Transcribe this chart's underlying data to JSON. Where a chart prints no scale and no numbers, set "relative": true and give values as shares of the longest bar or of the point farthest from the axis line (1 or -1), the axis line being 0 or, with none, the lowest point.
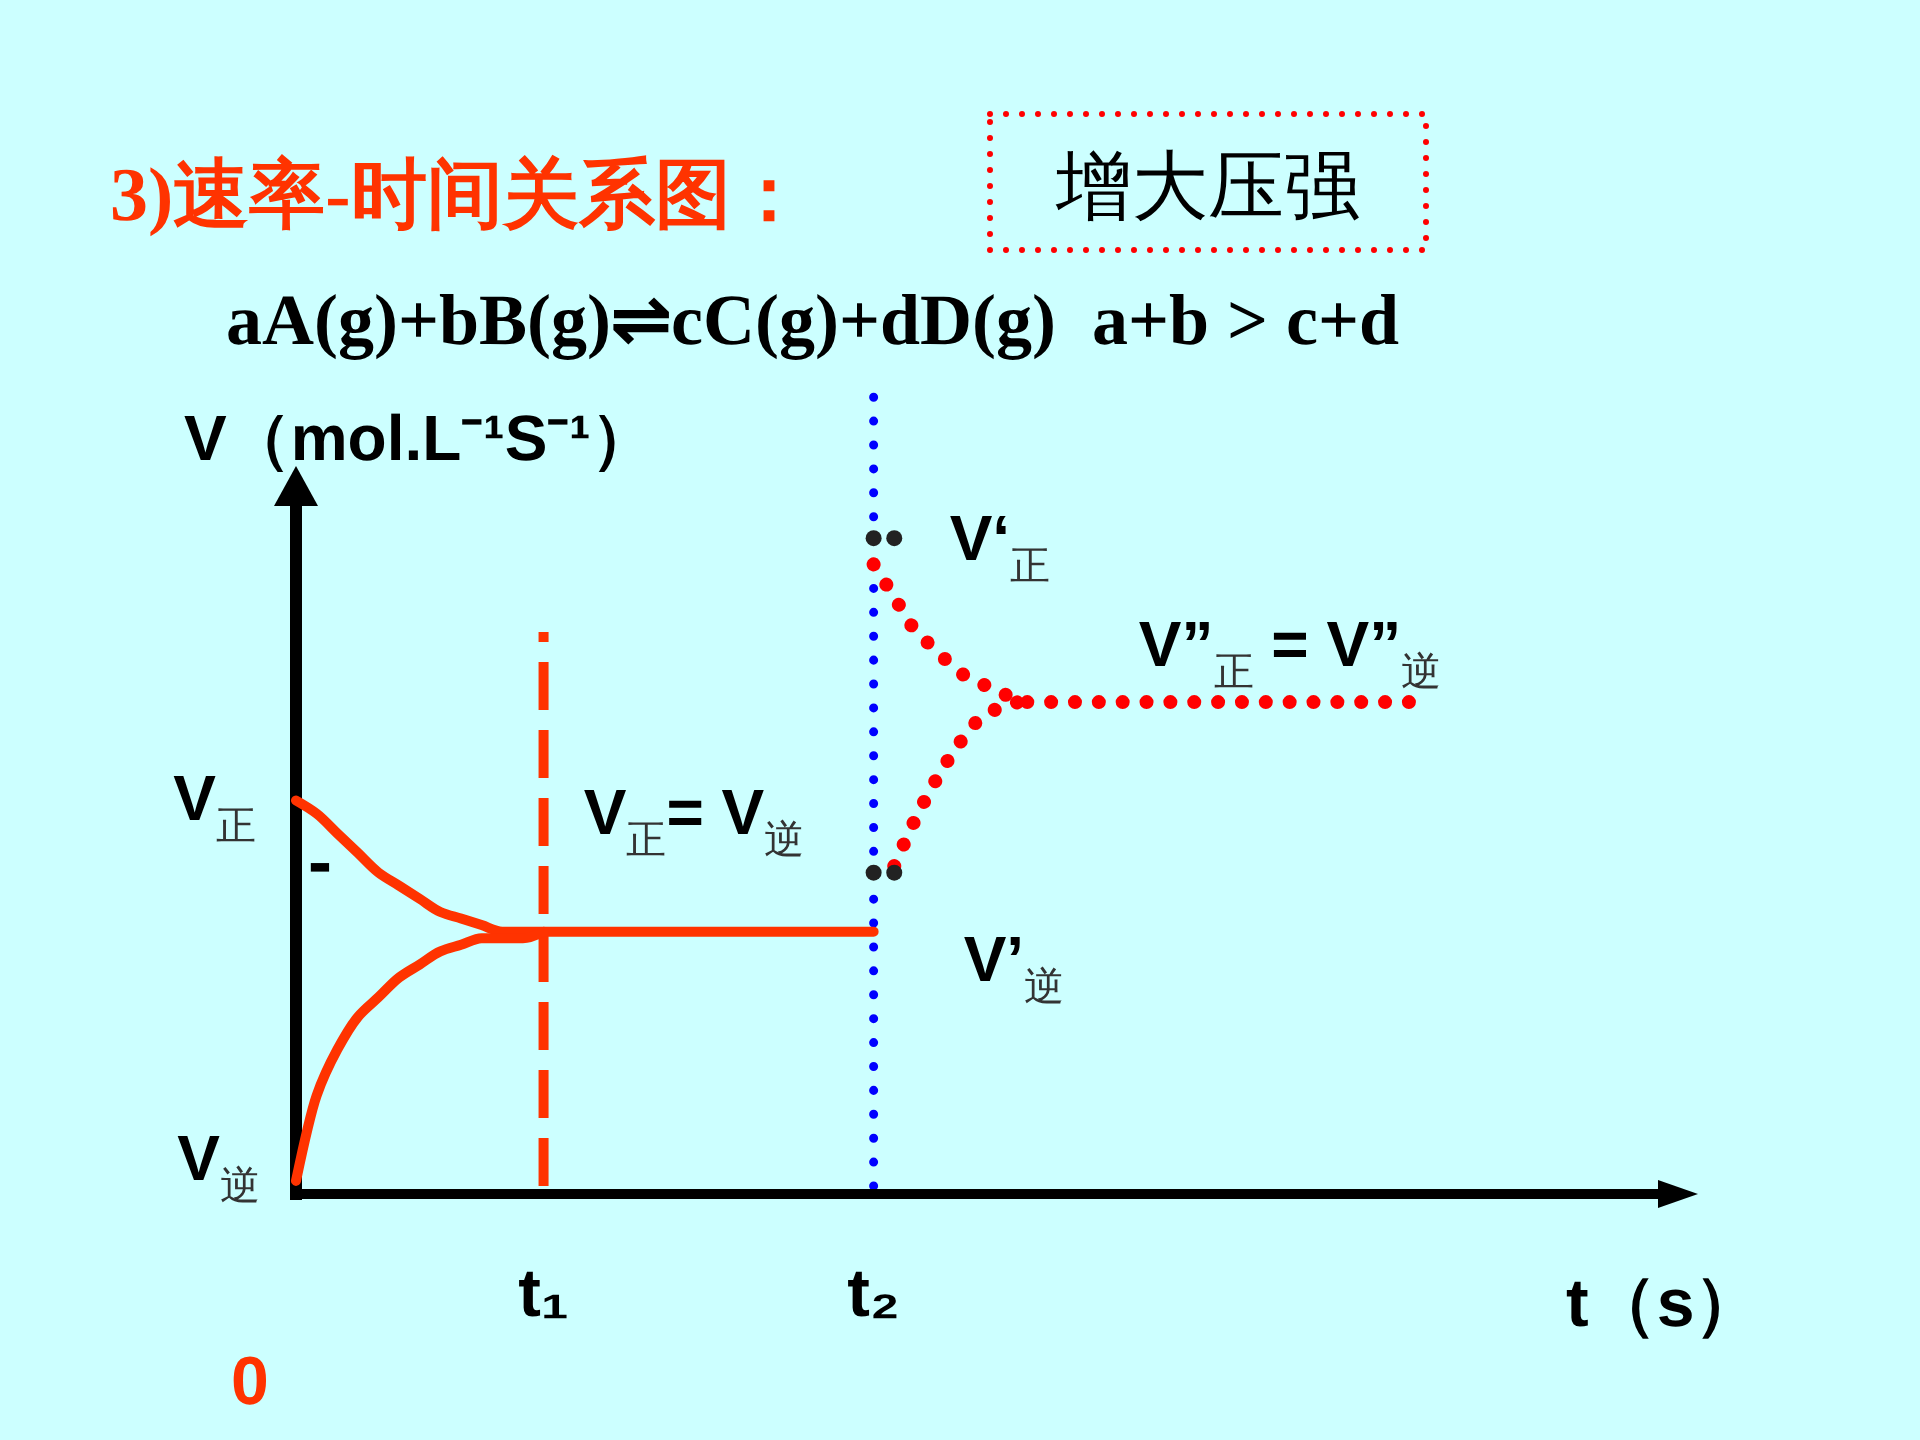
{
  "chart_data": {
    "type": "line",
    "title": "3)速率-时间关系图：",
    "subtitle": "aA(g)+bB(g)⇌cC(g)+dD(g)  a+b > c+d",
    "xlabel": "t（s）",
    "ylabel": "V（mol.L⁻¹S⁻¹）",
    "relative": true,
    "categories": [
      null,
      null,
      null,
      null,
      null,
      null,
      null,
      null,
      null,
      null,
      null,
      null,
      "t₁",
      null,
      null,
      null,
      null,
      null,
      null,
      null,
      null,
      null,
      null,
      null,
      null,
      null,
      null,
      null,
      "t₂",
      null,
      null,
      null,
      null,
      null,
      null,
      null,
      null,
      null,
      null,
      null,
      null,
      null,
      null,
      null,
      null,
      null,
      null,
      null,
      null,
      null,
      null,
      null,
      null,
      null,
      null
    ],
    "ref_lines": [
      {
        "axis": "x",
        "value": "t₁",
        "color": "#ff3300",
        "line_style": "dashed"
      },
      {
        "axis": "x",
        "value": "t₂",
        "color": "#0000ff",
        "line_style": "dotted"
      }
    ],
    "series": [
      {
        "color": "#ff3300",
        "line_style": "solid",
        "values": [
          0.6,
          0.58,
          0.55,
          0.52,
          0.49,
          0.47,
          0.45,
          0.43,
          0.42,
          0.41,
          0.4,
          0.4,
          0.4,
          0.4,
          0.4,
          0.4,
          0.4,
          0.4,
          0.4,
          0.4,
          0.4,
          0.4,
          0.4,
          0.4,
          0.4,
          0.4,
          0.4,
          0.4,
          0.4,
          null,
          null,
          null,
          null,
          null,
          null,
          null,
          null,
          null,
          null,
          null,
          null,
          null,
          null,
          null,
          null,
          null,
          null,
          null,
          null,
          null,
          null,
          null,
          null,
          null,
          null
        ]
      },
      {
        "color": "#ff3300",
        "line_style": "solid",
        "values": [
          0.02,
          0.15,
          0.22,
          0.27,
          0.3,
          0.33,
          0.35,
          0.37,
          0.38,
          0.39,
          0.39,
          0.39,
          0.4,
          null,
          null,
          null,
          null,
          null,
          null,
          null,
          null,
          null,
          null,
          null,
          null,
          null,
          null,
          null,
          null,
          null,
          null,
          null,
          null,
          null,
          null,
          null,
          null,
          null,
          null,
          null,
          null,
          null,
          null,
          null,
          null,
          null,
          null,
          null,
          null,
          null,
          null,
          null,
          null,
          null,
          null
        ]
      },
      {
        "color": "#ff0000",
        "line_style": "dotted",
        "values": [
          null,
          null,
          null,
          null,
          null,
          null,
          null,
          null,
          null,
          null,
          null,
          null,
          null,
          null,
          null,
          null,
          null,
          null,
          null,
          null,
          null,
          null,
          null,
          null,
          null,
          null,
          null,
          null,
          0.96,
          0.91,
          0.86,
          0.83,
          0.8,
          0.78,
          0.77,
          0.75,
          0.75,
          0.75,
          0.75,
          0.75,
          0.75,
          0.75,
          0.75,
          0.75,
          0.75,
          0.75,
          0.75,
          0.75,
          0.75,
          0.75,
          0.75,
          0.75,
          0.75,
          0.75,
          0.75
        ]
      },
      {
        "color": "#ff0000",
        "line_style": "dotted",
        "values": [
          null,
          null,
          null,
          null,
          null,
          null,
          null,
          null,
          null,
          null,
          null,
          null,
          null,
          null,
          null,
          null,
          null,
          null,
          null,
          null,
          null,
          null,
          null,
          null,
          null,
          null,
          null,
          null,
          null,
          0.5,
          0.57,
          0.63,
          0.68,
          0.72,
          0.74,
          0.75,
          null,
          null,
          null,
          null,
          null,
          null,
          null,
          null,
          null,
          null,
          null,
          null,
          null,
          null,
          null,
          null,
          null,
          null,
          null
        ]
      },
      {
        "type": "scatter",
        "marker": "circle",
        "color": "#222222",
        "values": [
          null,
          null,
          null,
          null,
          null,
          null,
          null,
          null,
          null,
          null,
          null,
          null,
          null,
          null,
          null,
          null,
          null,
          null,
          null,
          null,
          null,
          null,
          null,
          null,
          null,
          null,
          null,
          null,
          1,
          1,
          null,
          null,
          null,
          null,
          null,
          null,
          null,
          null,
          null,
          null,
          null,
          null,
          null,
          null,
          null,
          null,
          null,
          null,
          null,
          null,
          null,
          null,
          null,
          null,
          null
        ]
      },
      {
        "type": "scatter",
        "marker": "circle",
        "color": "#222222",
        "values": [
          null,
          null,
          null,
          null,
          null,
          null,
          null,
          null,
          null,
          null,
          null,
          null,
          null,
          null,
          null,
          null,
          null,
          null,
          null,
          null,
          null,
          null,
          null,
          null,
          null,
          null,
          null,
          null,
          0.49,
          0.49,
          null,
          null,
          null,
          null,
          null,
          null,
          null,
          null,
          null,
          null,
          null,
          null,
          null,
          null,
          null,
          null,
          null,
          null,
          null,
          null,
          null,
          null,
          null,
          null,
          null
        ]
      }
    ],
    "annotations": [
      "增大压强",
      "V$_{正}$",
      "V$_{逆}$",
      "-",
      {
        "text": "V$_{正}$= V$_{逆}$",
        "y": 0.4
      },
      {
        "text": "V‘$_{正}$",
        "x": "t₂",
        "y": 1
      },
      {
        "text": "V”$_{正}$ = V”$_{逆}$",
        "y": 0.75
      },
      {
        "text": "V’$_{逆}$",
        "x": "t₂",
        "y": 0.49
      },
      "0"
    ]
  }
}
